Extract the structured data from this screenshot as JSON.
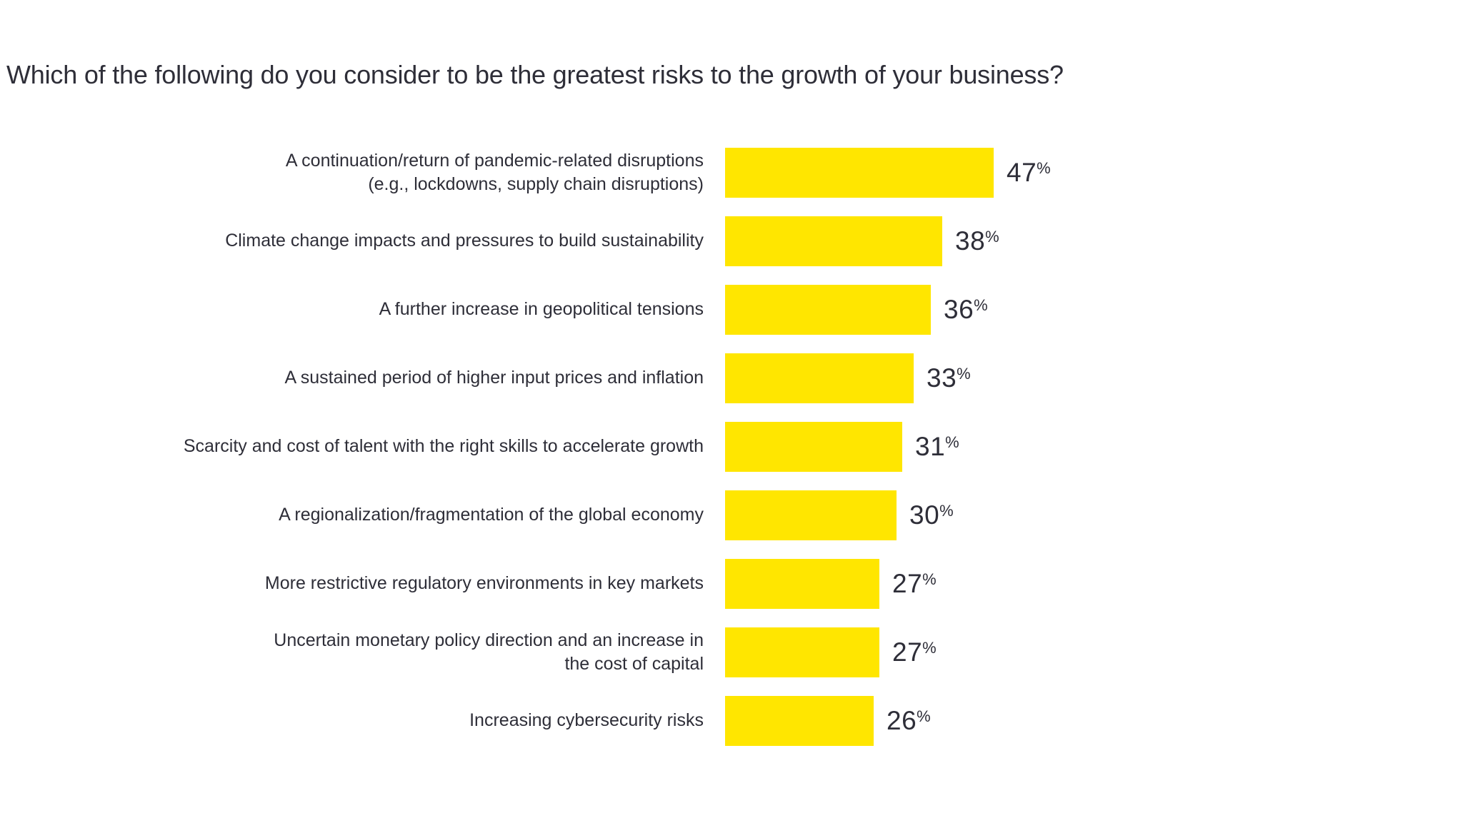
{
  "chart_data": {
    "type": "bar",
    "orientation": "horizontal",
    "title": "Which of the following do you consider to be the greatest risks to the growth of your business?",
    "categories": [
      "A continuation/return of pandemic-related disruptions\n(e.g., lockdowns, supply chain disruptions)",
      "Climate change impacts and pressures to build sustainability",
      "A further increase in geopolitical tensions",
      "A sustained period of higher input prices and inflation",
      "Scarcity and cost of talent with the right skills to accelerate growth",
      "A regionalization/fragmentation of the global economy",
      "More restrictive regulatory environments in key markets",
      "Uncertain monetary policy direction and an increase in\nthe cost of capital",
      "Increasing cybersecurity risks"
    ],
    "values": [
      47,
      38,
      36,
      33,
      31,
      30,
      27,
      27,
      26
    ],
    "unit": "%",
    "value_labels": "outside-end",
    "xlim": [
      0,
      50
    ],
    "grid": false,
    "axes_visible": false,
    "legend": "none",
    "bar_color": "#ffe600",
    "text_color": "#2e2e38",
    "background_color": "#ffffff"
  }
}
